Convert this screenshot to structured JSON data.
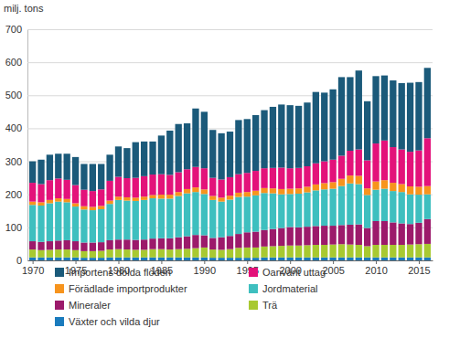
{
  "chart_data": {
    "type": "bar",
    "stacked": true,
    "grid": true,
    "legend": "bottom",
    "y_label": "milj. tons",
    "x": [
      1970,
      1971,
      1972,
      1973,
      1974,
      1975,
      1976,
      1977,
      1978,
      1979,
      1980,
      1981,
      1982,
      1983,
      1984,
      1985,
      1986,
      1987,
      1988,
      1989,
      1990,
      1991,
      1992,
      1993,
      1994,
      1995,
      1996,
      1997,
      1998,
      1999,
      2000,
      2001,
      2002,
      2003,
      2004,
      2005,
      2006,
      2007,
      2008,
      2009,
      2010,
      2011,
      2012,
      2013,
      2014,
      2015,
      2016
    ],
    "xlim": [
      1969.4,
      2016.6
    ],
    "xticks": [
      1970,
      1975,
      1980,
      1985,
      1990,
      1995,
      2000,
      2005,
      2010,
      2015
    ],
    "ylim": [
      0,
      700
    ],
    "yticks": [
      0,
      100,
      200,
      300,
      400,
      500,
      600,
      700
    ],
    "series": [
      {
        "name": "Växter och vilda djur",
        "color": "#1a7bbd",
        "values": [
          9,
          9,
          9,
          9,
          9,
          9,
          8,
          8,
          8,
          9,
          9,
          9,
          9,
          9,
          9,
          9,
          9,
          9,
          9,
          9,
          9,
          8,
          8,
          8,
          8,
          8,
          8,
          9,
          9,
          9,
          9,
          9,
          9,
          9,
          9,
          9,
          9,
          9,
          9,
          9,
          9,
          9,
          9,
          9,
          9,
          9,
          9
        ]
      },
      {
        "name": "Trä",
        "color": "#a8c931",
        "values": [
          24,
          22,
          23,
          24,
          24,
          22,
          20,
          20,
          21,
          24,
          25,
          24,
          23,
          23,
          25,
          25,
          24,
          25,
          26,
          28,
          30,
          25,
          24,
          26,
          30,
          31,
          31,
          33,
          34,
          35,
          36,
          36,
          37,
          38,
          38,
          39,
          40,
          39,
          38,
          34,
          38,
          38,
          38,
          38,
          39,
          40,
          41
        ]
      },
      {
        "name": "Mineraler",
        "color": "#9c1a6b",
        "values": [
          25,
          25,
          26,
          27,
          28,
          27,
          26,
          26,
          26,
          28,
          29,
          30,
          30,
          31,
          32,
          33,
          34,
          36,
          38,
          40,
          37,
          35,
          38,
          40,
          42,
          46,
          48,
          50,
          52,
          54,
          56,
          55,
          56,
          57,
          58,
          57,
          58,
          60,
          62,
          55,
          72,
          72,
          68,
          65,
          62,
          65,
          75
        ]
      },
      {
        "name": "Jordmaterial",
        "color": "#3ebfbf",
        "values": [
          110,
          110,
          115,
          118,
          115,
          105,
          100,
          98,
          100,
          110,
          120,
          118,
          118,
          120,
          122,
          120,
          120,
          125,
          130,
          130,
          125,
          115,
          108,
          110,
          112,
          108,
          110,
          112,
          108,
          102,
          100,
          102,
          104,
          108,
          110,
          112,
          118,
          125,
          122,
          100,
          95,
          98,
          95,
          95,
          90,
          85,
          75
        ]
      },
      {
        "name": "Förädlade importprodukter",
        "color": "#f7941d",
        "values": [
          10,
          10,
          10,
          10,
          10,
          10,
          10,
          10,
          10,
          10,
          10,
          10,
          10,
          10,
          10,
          12,
          12,
          12,
          13,
          14,
          14,
          12,
          12,
          12,
          13,
          14,
          14,
          15,
          15,
          16,
          16,
          16,
          17,
          18,
          19,
          20,
          22,
          24,
          25,
          20,
          25,
          26,
          25,
          24,
          24,
          24,
          25
        ]
      },
      {
        "name": "Oanvänt uttag",
        "color": "#e3127a",
        "values": [
          57,
          55,
          60,
          60,
          58,
          55,
          50,
          48,
          50,
          60,
          60,
          58,
          60,
          62,
          62,
          62,
          60,
          60,
          60,
          62,
          64,
          55,
          55,
          56,
          56,
          58,
          60,
          60,
          62,
          65,
          62,
          62,
          62,
          64,
          66,
          68,
          70,
          75,
          80,
          85,
          115,
          120,
          108,
          105,
          105,
          110,
          145
        ]
      },
      {
        "name": "Importens dolda flöden",
        "color": "#1b5a7a",
        "values": [
          65,
          74,
          77,
          75,
          79,
          85,
          78,
          82,
          77,
          79,
          92,
          91,
          108,
          105,
          100,
          117,
          134,
          146,
          139,
          177,
          171,
          145,
          140,
          138,
          164,
          163,
          169,
          176,
          185,
          191,
          191,
          188,
          193,
          216,
          208,
          213,
          238,
          223,
          239,
          179,
          204,
          197,
          202,
          201,
          209,
          207,
          213
        ]
      }
    ]
  }
}
